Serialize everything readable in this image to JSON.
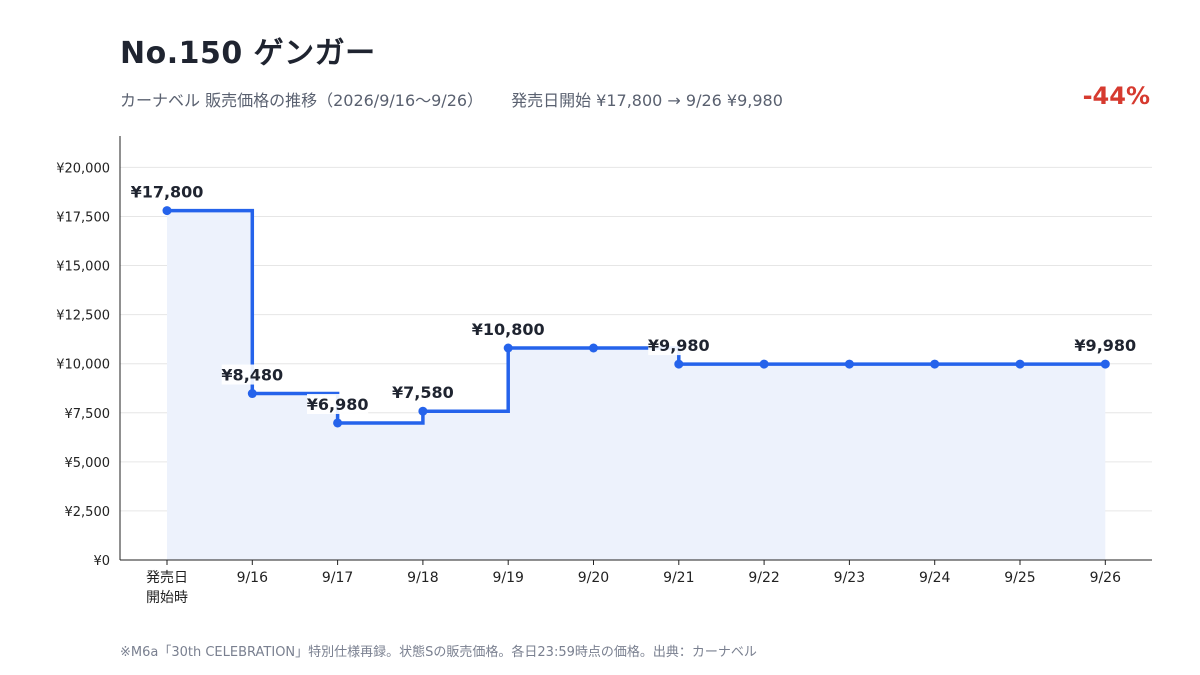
{
  "header": {
    "title": "No.150 ゲンガー",
    "subtitle": "カーナベル 販売価格の推移（2026/9/16〜9/26）",
    "summary": "発売日開始 ¥17,800 → 9/26 ¥9,980",
    "change": "-44%",
    "change_color": "#d63a2f"
  },
  "footnote": "※M6a「30th CELEBRATION」特別仕様再録。状態Sの販売価格。各日23:59時点の価格。出典：カーナベル",
  "chart_data": {
    "type": "line",
    "step": true,
    "categories": [
      "発売日\n開始時",
      "9/16",
      "9/17",
      "9/18",
      "9/19",
      "9/20",
      "9/21",
      "9/22",
      "9/23",
      "9/24",
      "9/25",
      "9/26"
    ],
    "series": [
      {
        "values": [
          17800,
          8480,
          6980,
          7580,
          10800,
          10800,
          9980,
          9980,
          9980,
          9980,
          9980,
          9980
        ],
        "color": "#2563eb"
      }
    ],
    "data_labels": [
      {
        "index": 0,
        "text": "¥17,800"
      },
      {
        "index": 1,
        "text": "¥8,480"
      },
      {
        "index": 2,
        "text": "¥6,980"
      },
      {
        "index": 3,
        "text": "¥7,580"
      },
      {
        "index": 4,
        "text": "¥10,800"
      },
      {
        "index": 6,
        "text": "¥9,980"
      },
      {
        "index": 11,
        "text": "¥9,980"
      }
    ],
    "y_ticks": [
      "¥0",
      "¥2,500",
      "¥5,000",
      "¥7,500",
      "¥10,000",
      "¥12,500",
      "¥15,000",
      "¥17,500",
      "¥20,000"
    ],
    "y_tick_values": [
      0,
      2500,
      5000,
      7500,
      10000,
      12500,
      15000,
      17500,
      20000
    ],
    "ylim": [
      0,
      21600
    ],
    "grid": true,
    "area_fill": true,
    "area_color": "#edf2fc",
    "grid_color": "#e6e6e6"
  }
}
